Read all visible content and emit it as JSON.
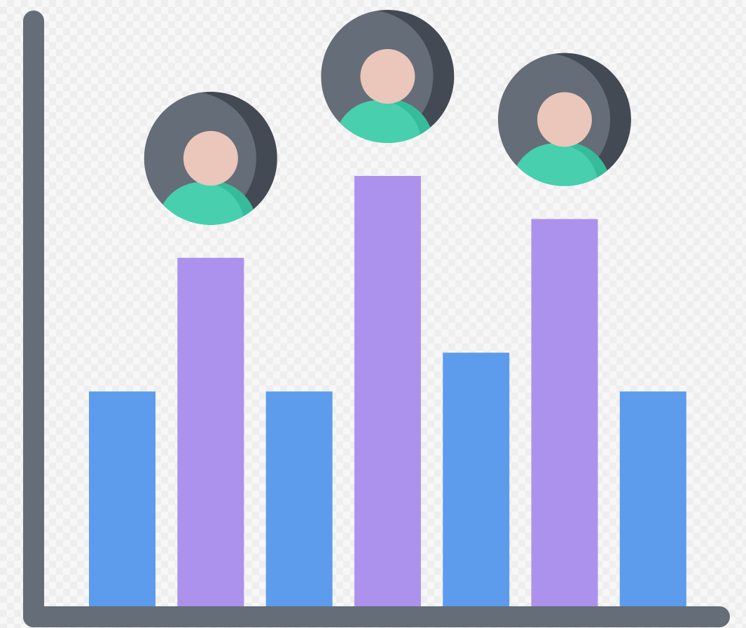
{
  "illustration": {
    "icon": "bar-chart-with-people-icon",
    "colors": {
      "axis": "#656d78",
      "bar_blue": "#5d9cec",
      "bar_purple": "#ac92ec",
      "avatar_bg": "#656d78",
      "avatar_shade": "#434a54",
      "avatar_skin": "#eac6bb",
      "avatar_shirt": "#48cfad",
      "avatar_shirt_shade": "#37bc9b"
    },
    "bars": [
      {
        "level": 0.5,
        "color": "bar_blue"
      },
      {
        "level": 0.81,
        "color": "bar_purple"
      },
      {
        "level": 0.5,
        "color": "bar_blue"
      },
      {
        "level": 1.0,
        "color": "bar_purple"
      },
      {
        "level": 0.59,
        "color": "bar_blue"
      },
      {
        "level": 0.9,
        "color": "bar_purple"
      },
      {
        "level": 0.5,
        "color": "bar_blue"
      }
    ],
    "avatars": [
      {
        "bar_index": 1
      },
      {
        "bar_index": 3
      },
      {
        "bar_index": 5
      }
    ]
  }
}
